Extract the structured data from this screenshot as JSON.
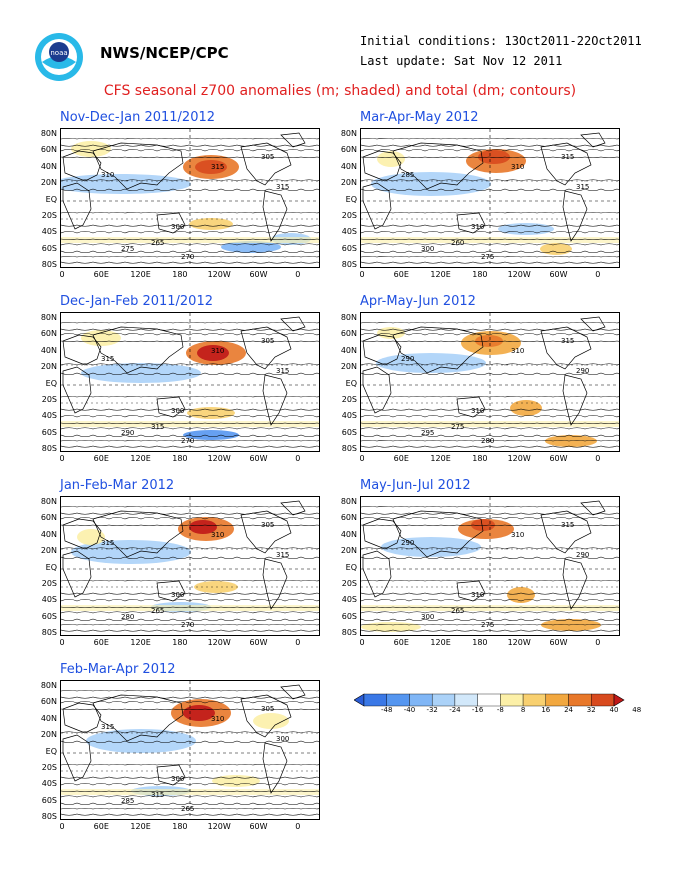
{
  "header": {
    "org": "NWS/NCEP/CPC",
    "init": "Initial conditions: 13Oct2011-22Oct2011",
    "update": "Last update: Sat Nov 12 2011",
    "logo": "noaa-logo"
  },
  "title": "CFS seasonal z700 anomalies (m; shaded) and total (dm; contours)",
  "lat_labels": [
    "80N",
    "60N",
    "40N",
    "20N",
    "EQ",
    "20S",
    "40S",
    "60S",
    "80S"
  ],
  "lon_labels": [
    "0",
    "60E",
    "120E",
    "180",
    "120W",
    "60W",
    "0"
  ],
  "panels": [
    {
      "title": "Nov-Dec-Jan 2011/2012",
      "labels": [
        "310",
        "315",
        "305",
        "300",
        "275",
        "270",
        "265",
        "315"
      ]
    },
    {
      "title": "Dec-Jan-Feb 2011/2012",
      "labels": [
        "315",
        "310",
        "305",
        "300",
        "290",
        "270",
        "315",
        "315"
      ]
    },
    {
      "title": "Jan-Feb-Mar 2012",
      "labels": [
        "315",
        "310",
        "305",
        "300",
        "280",
        "270",
        "265",
        "315"
      ]
    },
    {
      "title": "Feb-Mar-Apr 2012",
      "labels": [
        "315",
        "310",
        "305",
        "300",
        "285",
        "265",
        "315",
        "300"
      ]
    },
    {
      "title": "Mar-Apr-May 2012",
      "labels": [
        "285",
        "310",
        "315",
        "310",
        "300",
        "275",
        "260",
        "315"
      ]
    },
    {
      "title": "Apr-May-Jun 2012",
      "labels": [
        "290",
        "310",
        "315",
        "310",
        "295",
        "280",
        "275",
        "290"
      ]
    },
    {
      "title": "May-Jun-Jul 2012",
      "labels": [
        "290",
        "310",
        "315",
        "310",
        "300",
        "275",
        "265",
        "290"
      ]
    }
  ],
  "colorbar": {
    "colors": [
      "#2a5cd6",
      "#3a78e6",
      "#5596f0",
      "#80b6f6",
      "#abd2f8",
      "#d2e8fa",
      "#ffffff",
      "#fcf0a8",
      "#f8d070",
      "#f2a840",
      "#e8782a",
      "#d84a1e",
      "#c01818"
    ],
    "labels": [
      "-48",
      "-40",
      "-32",
      "-24",
      "-16",
      "-8",
      "8",
      "16",
      "24",
      "32",
      "40",
      "48"
    ]
  }
}
